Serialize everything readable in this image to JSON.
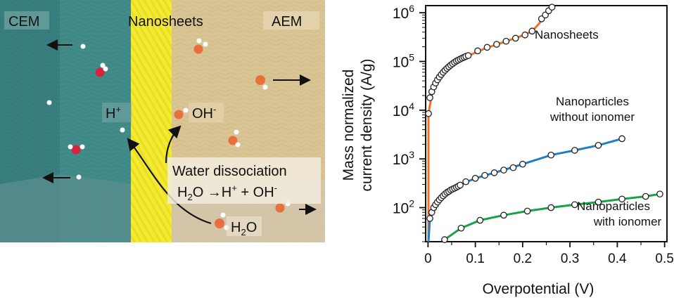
{
  "illustration": {
    "cem_label": "CEM",
    "nanosheets_label": "Nanosheets",
    "aem_label": "AEM",
    "h_plus_label": "H",
    "h_plus_sup": "+",
    "oh_minus_label": "OH",
    "oh_minus_sup": "-",
    "water_dissociation_label": "Water dissociation",
    "reaction_lhs": "H",
    "reaction_sub": "2",
    "reaction_mid": "O →H",
    "reaction_plus_sup": "+",
    "reaction_rhs": " + OH",
    "reaction_minus_sup": "-",
    "h2o_label": "H",
    "h2o_sub": "2",
    "h2o_tail": "O",
    "colors": {
      "cem": "#3c8583",
      "nanosheets": "#f0e628",
      "aem": "#d9c494",
      "oxygen_cem": "#d8233f",
      "oxygen_aem": "#e8703a"
    }
  },
  "chart_data": {
    "type": "scatter",
    "xlabel": "Overpotential (V)",
    "ylabel_line1": "Mass normalized",
    "ylabel_line2": "current density (A/g)",
    "yscale": "log",
    "xlim": [
      -0.005,
      0.505
    ],
    "ylim": [
      20,
      1400000
    ],
    "xticks": [
      0,
      0.1,
      0.2,
      0.3,
      0.4,
      0.5
    ],
    "xtick_labels": [
      "0",
      "0.1",
      "0.2",
      "0.3",
      "0.4",
      "0.5"
    ],
    "yticks": [
      100,
      1000,
      10000,
      100000,
      1000000
    ],
    "ytick_base": "10",
    "ytick_exps": [
      "2",
      "3",
      "4",
      "5",
      "6"
    ],
    "series": [
      {
        "name": "Nanosheets",
        "color": "#f26f21",
        "points": [
          [
            0.001,
            8500
          ],
          [
            0.004,
            18000
          ],
          [
            0.008,
            24000
          ],
          [
            0.012,
            30000
          ],
          [
            0.016,
            36000
          ],
          [
            0.02,
            42000
          ],
          [
            0.024,
            48000
          ],
          [
            0.028,
            54000
          ],
          [
            0.032,
            60000
          ],
          [
            0.036,
            66000
          ],
          [
            0.04,
            72000
          ],
          [
            0.044,
            78000
          ],
          [
            0.048,
            84000
          ],
          [
            0.052,
            90000
          ],
          [
            0.056,
            96000
          ],
          [
            0.06,
            102000
          ],
          [
            0.064,
            107000
          ],
          [
            0.068,
            112000
          ],
          [
            0.072,
            117000
          ],
          [
            0.076,
            122000
          ],
          [
            0.08,
            127000
          ],
          [
            0.085,
            132000
          ],
          [
            0.105,
            165000
          ],
          [
            0.125,
            195000
          ],
          [
            0.145,
            225000
          ],
          [
            0.165,
            260000
          ],
          [
            0.185,
            300000
          ],
          [
            0.205,
            350000
          ],
          [
            0.22,
            420000
          ],
          [
            0.24,
            750000
          ],
          [
            0.248,
            900000
          ],
          [
            0.255,
            1100000
          ],
          [
            0.262,
            1300000
          ]
        ],
        "curve": [
          [
            0.001,
            20
          ],
          [
            0.001,
            8500
          ],
          [
            0.01,
            27000
          ],
          [
            0.03,
            57000
          ],
          [
            0.05,
            87000
          ],
          [
            0.07,
            115000
          ],
          [
            0.09,
            137000
          ],
          [
            0.12,
            185000
          ],
          [
            0.16,
            250000
          ],
          [
            0.2,
            340000
          ],
          [
            0.22,
            420000
          ],
          [
            0.235,
            600000
          ],
          [
            0.25,
            950000
          ],
          [
            0.262,
            1300000
          ]
        ]
      },
      {
        "name": "Nanoparticles without ionomer",
        "color": "#1f7fc6",
        "points": [
          [
            0.004,
            60
          ],
          [
            0.008,
            80
          ],
          [
            0.012,
            100
          ],
          [
            0.016,
            115
          ],
          [
            0.02,
            130
          ],
          [
            0.024,
            145
          ],
          [
            0.028,
            160
          ],
          [
            0.032,
            175
          ],
          [
            0.036,
            190
          ],
          [
            0.04,
            205
          ],
          [
            0.044,
            215
          ],
          [
            0.048,
            230
          ],
          [
            0.052,
            240
          ],
          [
            0.056,
            250
          ],
          [
            0.06,
            262
          ],
          [
            0.064,
            275
          ],
          [
            0.068,
            290
          ],
          [
            0.08,
            340
          ],
          [
            0.1,
            400
          ],
          [
            0.12,
            460
          ],
          [
            0.14,
            520
          ],
          [
            0.16,
            590
          ],
          [
            0.18,
            660
          ],
          [
            0.2,
            780
          ],
          [
            0.26,
            1200
          ],
          [
            0.31,
            1500
          ],
          [
            0.36,
            1900
          ],
          [
            0.41,
            2600
          ]
        ],
        "curve": [
          [
            0.001,
            20
          ],
          [
            0.004,
            60
          ],
          [
            0.02,
            130
          ],
          [
            0.04,
            205
          ],
          [
            0.07,
            300
          ],
          [
            0.1,
            400
          ],
          [
            0.15,
            555
          ],
          [
            0.2,
            780
          ],
          [
            0.26,
            1200
          ],
          [
            0.31,
            1500
          ],
          [
            0.36,
            1900
          ],
          [
            0.41,
            2600
          ]
        ]
      },
      {
        "name": "Nanoparticles with ionomer",
        "color": "#17a247",
        "points": [
          [
            0.035,
            22
          ],
          [
            0.07,
            38
          ],
          [
            0.11,
            55
          ],
          [
            0.16,
            70
          ],
          [
            0.21,
            85
          ],
          [
            0.26,
            100
          ],
          [
            0.31,
            115
          ],
          [
            0.36,
            130
          ],
          [
            0.41,
            150
          ],
          [
            0.46,
            170
          ],
          [
            0.49,
            190
          ]
        ],
        "curve": [
          [
            0.035,
            22
          ],
          [
            0.07,
            38
          ],
          [
            0.11,
            55
          ],
          [
            0.16,
            70
          ],
          [
            0.21,
            85
          ],
          [
            0.26,
            100
          ],
          [
            0.31,
            115
          ],
          [
            0.36,
            130
          ],
          [
            0.41,
            150
          ],
          [
            0.46,
            170
          ],
          [
            0.49,
            190
          ]
        ]
      }
    ],
    "annotations": {
      "nanosheets": "Nanosheets",
      "np_without_line1": "Nanoparticles",
      "np_without_line2": "without ionomer",
      "np_with_line1": "Nanoparticles",
      "np_with_line2": "with ionomer"
    }
  }
}
